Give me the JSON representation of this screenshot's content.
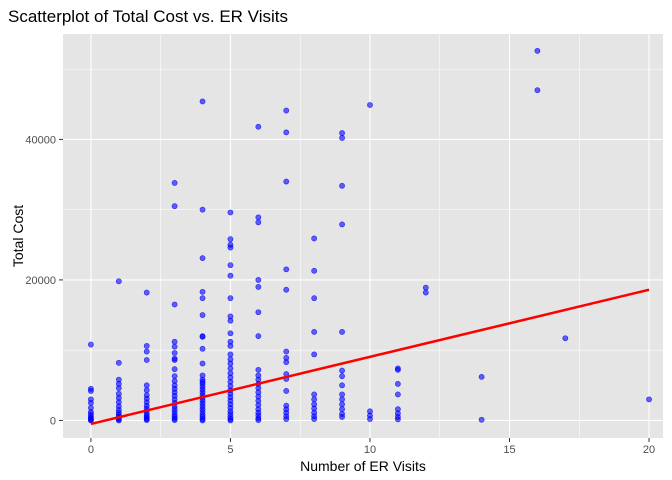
{
  "chart_data": {
    "type": "scatter",
    "title": "Scatterplot of Total Cost vs. ER Visits",
    "xlabel": "Number of ER Visits",
    "ylabel": "Total Cost",
    "xlim": [
      -1,
      20.5
    ],
    "ylim": [
      -2500,
      55000
    ],
    "x_ticks": [
      0,
      5,
      10,
      15,
      20
    ],
    "x_tick_labels": [
      "0",
      "5",
      "10",
      "15",
      "20"
    ],
    "y_ticks": [
      0,
      20000,
      40000
    ],
    "y_tick_labels": [
      "0",
      "20000",
      "40000"
    ],
    "grid": true,
    "legend": "none",
    "point_color": "#0000ff",
    "line_color": "#ff0000",
    "panel_color": "#e5e5e5",
    "grid_color": "#ffffff",
    "trend_line": {
      "x": [
        0,
        20
      ],
      "y": [
        -500,
        18600
      ]
    },
    "points": [
      [
        0,
        10800
      ],
      [
        0,
        4500
      ],
      [
        0,
        4200
      ],
      [
        0,
        3000
      ],
      [
        0,
        2500
      ],
      [
        0,
        1800
      ],
      [
        0,
        1200
      ],
      [
        0,
        900
      ],
      [
        0,
        600
      ],
      [
        0,
        400
      ],
      [
        0,
        200
      ],
      [
        0,
        100
      ],
      [
        0,
        0
      ],
      [
        1,
        19800
      ],
      [
        1,
        8200
      ],
      [
        1,
        5800
      ],
      [
        1,
        5200
      ],
      [
        1,
        4600
      ],
      [
        1,
        3800
      ],
      [
        1,
        3200
      ],
      [
        1,
        2600
      ],
      [
        1,
        2000
      ],
      [
        1,
        1500
      ],
      [
        1,
        1100
      ],
      [
        1,
        800
      ],
      [
        1,
        500
      ],
      [
        1,
        300
      ],
      [
        1,
        150
      ],
      [
        1,
        0
      ],
      [
        2,
        18200
      ],
      [
        2,
        10600
      ],
      [
        2,
        9800
      ],
      [
        2,
        8600
      ],
      [
        2,
        5000
      ],
      [
        2,
        4300
      ],
      [
        2,
        3600
      ],
      [
        2,
        3100
      ],
      [
        2,
        2600
      ],
      [
        2,
        2100
      ],
      [
        2,
        1700
      ],
      [
        2,
        1300
      ],
      [
        2,
        900
      ],
      [
        2,
        600
      ],
      [
        2,
        400
      ],
      [
        2,
        200
      ],
      [
        2,
        50
      ],
      [
        3,
        33800
      ],
      [
        3,
        30500
      ],
      [
        3,
        16500
      ],
      [
        3,
        11200
      ],
      [
        3,
        10500
      ],
      [
        3,
        9600
      ],
      [
        3,
        8800
      ],
      [
        3,
        8600
      ],
      [
        3,
        7300
      ],
      [
        3,
        6300
      ],
      [
        3,
        5600
      ],
      [
        3,
        5000
      ],
      [
        3,
        4500
      ],
      [
        3,
        4000
      ],
      [
        3,
        3500
      ],
      [
        3,
        3000
      ],
      [
        3,
        2500
      ],
      [
        3,
        2000
      ],
      [
        3,
        1600
      ],
      [
        3,
        1200
      ],
      [
        3,
        800
      ],
      [
        3,
        500
      ],
      [
        3,
        250
      ],
      [
        3,
        50
      ],
      [
        4,
        45400
      ],
      [
        4,
        30000
      ],
      [
        4,
        23100
      ],
      [
        4,
        18300
      ],
      [
        4,
        17400
      ],
      [
        4,
        15000
      ],
      [
        4,
        12000
      ],
      [
        4,
        11900
      ],
      [
        4,
        10200
      ],
      [
        4,
        8100
      ],
      [
        4,
        6400
      ],
      [
        4,
        5800
      ],
      [
        4,
        5500
      ],
      [
        4,
        5200
      ],
      [
        4,
        4800
      ],
      [
        4,
        4400
      ],
      [
        4,
        4000
      ],
      [
        4,
        3600
      ],
      [
        4,
        3200
      ],
      [
        4,
        2800
      ],
      [
        4,
        2400
      ],
      [
        4,
        2000
      ],
      [
        4,
        1600
      ],
      [
        4,
        1200
      ],
      [
        4,
        800
      ],
      [
        4,
        500
      ],
      [
        4,
        200
      ],
      [
        4,
        0
      ],
      [
        5,
        29600
      ],
      [
        5,
        25800
      ],
      [
        5,
        25000
      ],
      [
        5,
        24600
      ],
      [
        5,
        22100
      ],
      [
        5,
        20600
      ],
      [
        5,
        17400
      ],
      [
        5,
        14800
      ],
      [
        5,
        14200
      ],
      [
        5,
        12400
      ],
      [
        5,
        11200
      ],
      [
        5,
        10600
      ],
      [
        5,
        9400
      ],
      [
        5,
        8700
      ],
      [
        5,
        8100
      ],
      [
        5,
        7400
      ],
      [
        5,
        6700
      ],
      [
        5,
        6100
      ],
      [
        5,
        5500
      ],
      [
        5,
        4900
      ],
      [
        5,
        4300
      ],
      [
        5,
        3800
      ],
      [
        5,
        3300
      ],
      [
        5,
        2800
      ],
      [
        5,
        2300
      ],
      [
        5,
        1800
      ],
      [
        5,
        1300
      ],
      [
        5,
        900
      ],
      [
        5,
        500
      ],
      [
        5,
        200
      ],
      [
        5,
        0
      ],
      [
        6,
        41800
      ],
      [
        6,
        28900
      ],
      [
        6,
        28200
      ],
      [
        6,
        20000
      ],
      [
        6,
        19000
      ],
      [
        6,
        15400
      ],
      [
        6,
        12000
      ],
      [
        6,
        7200
      ],
      [
        6,
        6400
      ],
      [
        6,
        5800
      ],
      [
        6,
        5200
      ],
      [
        6,
        4600
      ],
      [
        6,
        4000
      ],
      [
        6,
        3400
      ],
      [
        6,
        2800
      ],
      [
        6,
        2200
      ],
      [
        6,
        1600
      ],
      [
        6,
        1100
      ],
      [
        6,
        700
      ],
      [
        6,
        300
      ],
      [
        6,
        50
      ],
      [
        7,
        44100
      ],
      [
        7,
        41000
      ],
      [
        7,
        34000
      ],
      [
        7,
        21500
      ],
      [
        7,
        18600
      ],
      [
        7,
        9800
      ],
      [
        7,
        8900
      ],
      [
        7,
        8300
      ],
      [
        7,
        6600
      ],
      [
        7,
        5900
      ],
      [
        7,
        4200
      ],
      [
        7,
        2100
      ],
      [
        7,
        1600
      ],
      [
        7,
        1100
      ],
      [
        7,
        600
      ],
      [
        7,
        200
      ],
      [
        8,
        25900
      ],
      [
        8,
        21300
      ],
      [
        8,
        17400
      ],
      [
        8,
        12600
      ],
      [
        8,
        9400
      ],
      [
        8,
        3700
      ],
      [
        8,
        3000
      ],
      [
        8,
        2300
      ],
      [
        8,
        1700
      ],
      [
        8,
        1100
      ],
      [
        8,
        600
      ],
      [
        8,
        200
      ],
      [
        9,
        40900
      ],
      [
        9,
        40200
      ],
      [
        9,
        33400
      ],
      [
        9,
        27900
      ],
      [
        9,
        12600
      ],
      [
        9,
        7100
      ],
      [
        9,
        6300
      ],
      [
        9,
        5000
      ],
      [
        9,
        3700
      ],
      [
        9,
        3000
      ],
      [
        9,
        2300
      ],
      [
        9,
        1600
      ],
      [
        9,
        900
      ],
      [
        9,
        500
      ],
      [
        10,
        44900
      ],
      [
        10,
        1300
      ],
      [
        10,
        700
      ],
      [
        10,
        200
      ],
      [
        11,
        7400
      ],
      [
        11,
        7200
      ],
      [
        11,
        5200
      ],
      [
        11,
        3700
      ],
      [
        11,
        1600
      ],
      [
        11,
        1000
      ],
      [
        11,
        500
      ],
      [
        11,
        150
      ],
      [
        12,
        18900
      ],
      [
        12,
        18200
      ],
      [
        14,
        6200
      ],
      [
        14,
        100
      ],
      [
        16,
        52600
      ],
      [
        16,
        47000
      ],
      [
        17,
        11700
      ],
      [
        20,
        3000
      ]
    ]
  }
}
